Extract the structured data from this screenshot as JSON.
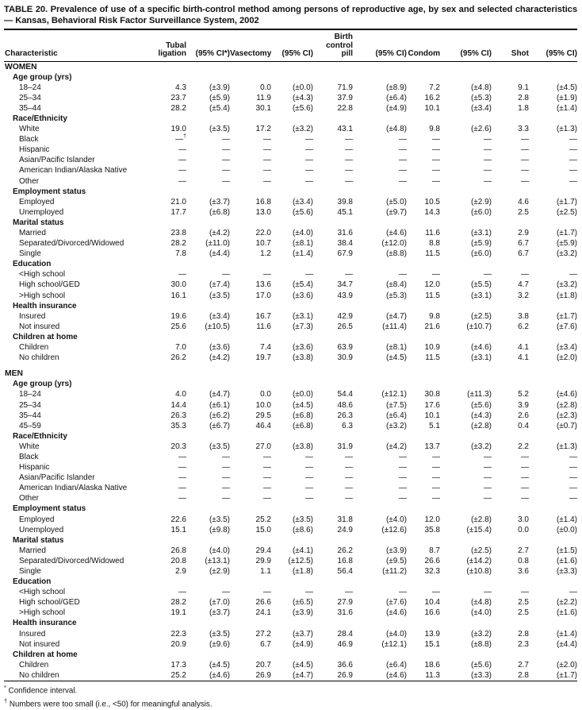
{
  "title": "TABLE 20. Prevalence of use of a specific birth-control method among persons of reproductive age, by sex and selected characteristics — Kansas, Behavioral Risk Factor Surveillance System, 2002",
  "columns": {
    "characteristic": "Characteristic",
    "headers": [
      "Tubal\nligation",
      "(95% CI*)",
      "Vasectomy",
      "(95% CI)",
      "Birth\ncontrol\npill",
      "(95% CI)",
      "Condom",
      "(95% CI)",
      "Shot",
      "(95% CI)"
    ]
  },
  "sections": [
    {
      "name": "WOMEN",
      "groups": [
        {
          "label": "Age group (yrs)",
          "rows": [
            {
              "label": "18–24",
              "values": [
                "4.3",
                "(±3.9)",
                "0.0",
                "(±0.0)",
                "71.9",
                "(±8.9)",
                "7.2",
                "(±4.8)",
                "9.1",
                "(±4.5)"
              ]
            },
            {
              "label": "25–34",
              "values": [
                "23.7",
                "(±5.9)",
                "11.9",
                "(±4.3)",
                "37.9",
                "(±6.4)",
                "16.2",
                "(±5.3)",
                "2.8",
                "(±1.9)"
              ]
            },
            {
              "label": "35–44",
              "values": [
                "28.2",
                "(±5.4)",
                "30.1",
                "(±5.6)",
                "22.8",
                "(±4.9)",
                "10.1",
                "(±3.4)",
                "1.8",
                "(±1.4)"
              ]
            }
          ]
        },
        {
          "label": "Race/Ethnicity",
          "rows": [
            {
              "label": "White",
              "values": [
                "19.0",
                "(±3.5)",
                "17.2",
                "(±3.2)",
                "43.1",
                "(±4.8)",
                "9.8",
                "(±2.6)",
                "3.3",
                "(±1.3)"
              ]
            },
            {
              "label": "Black",
              "values": [
                "—†",
                "—",
                "—",
                "—",
                "—",
                "—",
                "—",
                "—",
                "—",
                "—"
              ]
            },
            {
              "label": "Hispanic",
              "values": [
                "—",
                "—",
                "—",
                "—",
                "—",
                "—",
                "—",
                "—",
                "—",
                "—"
              ]
            },
            {
              "label": "Asian/Pacific Islander",
              "values": [
                "—",
                "—",
                "—",
                "—",
                "—",
                "—",
                "—",
                "—",
                "—",
                "—"
              ]
            },
            {
              "label": "American Indian/Alaska Native",
              "values": [
                "—",
                "—",
                "—",
                "—",
                "—",
                "—",
                "—",
                "—",
                "—",
                "—"
              ]
            },
            {
              "label": "Other",
              "values": [
                "—",
                "—",
                "—",
                "—",
                "—",
                "—",
                "—",
                "—",
                "—",
                "—"
              ]
            }
          ]
        },
        {
          "label": "Employment status",
          "rows": [
            {
              "label": "Employed",
              "values": [
                "21.0",
                "(±3.7)",
                "16.8",
                "(±3.4)",
                "39.8",
                "(±5.0)",
                "10.5",
                "(±2.9)",
                "4.6",
                "(±1.7)"
              ]
            },
            {
              "label": "Unemployed",
              "values": [
                "17.7",
                "(±6.8)",
                "13.0",
                "(±5.6)",
                "45.1",
                "(±9.7)",
                "14.3",
                "(±6.0)",
                "2.5",
                "(±2.5)"
              ]
            }
          ]
        },
        {
          "label": "Marital status",
          "rows": [
            {
              "label": "Married",
              "values": [
                "23.8",
                "(±4.2)",
                "22.0",
                "(±4.0)",
                "31.6",
                "(±4.6)",
                "11.6",
                "(±3.1)",
                "2.9",
                "(±1.7)"
              ]
            },
            {
              "label": "Separated/Divorced/Widowed",
              "values": [
                "28.2",
                "(±11.0)",
                "10.7",
                "(±8.1)",
                "38.4",
                "(±12.0)",
                "8.8",
                "(±5.9)",
                "6.7",
                "(±5.9)"
              ]
            },
            {
              "label": "Single",
              "values": [
                "7.8",
                "(±4.4)",
                "1.2",
                "(±1.4)",
                "67.9",
                "(±8.8)",
                "11.5",
                "(±6.0)",
                "6.7",
                "(±3.2)"
              ]
            }
          ]
        },
        {
          "label": "Education",
          "rows": [
            {
              "label": "<High school",
              "values": [
                "—",
                "—",
                "—",
                "—",
                "—",
                "—",
                "—",
                "—",
                "—",
                "—"
              ]
            },
            {
              "label": "High school/GED",
              "values": [
                "30.0",
                "(±7.4)",
                "13.6",
                "(±5.4)",
                "34.7",
                "(±8.4)",
                "12.0",
                "(±5.5)",
                "4.7",
                "(±3.2)"
              ]
            },
            {
              "label": ">High school",
              "values": [
                "16.1",
                "(±3.5)",
                "17.0",
                "(±3.6)",
                "43.9",
                "(±5.3)",
                "11.5",
                "(±3.1)",
                "3.2",
                "(±1.8)"
              ]
            }
          ]
        },
        {
          "label": "Health insurance",
          "rows": [
            {
              "label": "Insured",
              "values": [
                "19.6",
                "(±3.4)",
                "16.7",
                "(±3.1)",
                "42.9",
                "(±4.7)",
                "9.8",
                "(±2.5)",
                "3.8",
                "(±1.7)"
              ]
            },
            {
              "label": "Not insured",
              "values": [
                "25.6",
                "(±10.5)",
                "11.6",
                "(±7.3)",
                "26.5",
                "(±11.4)",
                "21.6",
                "(±10.7)",
                "6.2",
                "(±7.6)"
              ]
            }
          ]
        },
        {
          "label": "Children at home",
          "rows": [
            {
              "label": "Children",
              "values": [
                "7.0",
                "(±3.6)",
                "7.4",
                "(±3.6)",
                "63.9",
                "(±8.1)",
                "10.9",
                "(±4.6)",
                "4.1",
                "(±3.4)"
              ]
            },
            {
              "label": "No children",
              "values": [
                "26.2",
                "(±4.2)",
                "19.7",
                "(±3.8)",
                "30.9",
                "(±4.5)",
                "11.5",
                "(±3.1)",
                "4.1",
                "(±2.0)"
              ]
            }
          ]
        }
      ]
    },
    {
      "name": "MEN",
      "groups": [
        {
          "label": "Age group (yrs)",
          "rows": [
            {
              "label": "18–24",
              "values": [
                "4.0",
                "(±4.7)",
                "0.0",
                "(±0.0)",
                "54.4",
                "(±12.1)",
                "30.8",
                "(±11.3)",
                "5.2",
                "(±4.6)"
              ]
            },
            {
              "label": "25–34",
              "values": [
                "14.4",
                "(±6.1)",
                "10.0",
                "(±4.5)",
                "48.6",
                "(±7.5)",
                "17.6",
                "(±5.6)",
                "3.9",
                "(±2.8)"
              ]
            },
            {
              "label": "35–44",
              "values": [
                "26.3",
                "(±6.2)",
                "29.5",
                "(±6.8)",
                "26.3",
                "(±6.4)",
                "10.1",
                "(±4.3)",
                "2.6",
                "(±2.3)"
              ]
            },
            {
              "label": "45–59",
              "values": [
                "35.3",
                "(±6.7)",
                "46.4",
                "(±6.8)",
                "6.3",
                "(±3.2)",
                "5.1",
                "(±2.8)",
                "0.4",
                "(±0.7)"
              ]
            }
          ]
        },
        {
          "label": "Race/Ethnicity",
          "rows": [
            {
              "label": "White",
              "values": [
                "20.3",
                "(±3.5)",
                "27.0",
                "(±3.8)",
                "31.9",
                "(±4.2)",
                "13.7",
                "(±3.2)",
                "2.2",
                "(±1.3)"
              ]
            },
            {
              "label": "Black",
              "values": [
                "—",
                "—",
                "—",
                "—",
                "—",
                "—",
                "—",
                "—",
                "—",
                "—"
              ]
            },
            {
              "label": "Hispanic",
              "values": [
                "—",
                "—",
                "—",
                "—",
                "—",
                "—",
                "—",
                "—",
                "—",
                "—"
              ]
            },
            {
              "label": "Asian/Pacific Islander",
              "values": [
                "—",
                "—",
                "—",
                "—",
                "—",
                "—",
                "—",
                "—",
                "—",
                "—"
              ]
            },
            {
              "label": "American Indian/Alaska Native",
              "values": [
                "—",
                "—",
                "—",
                "—",
                "—",
                "—",
                "—",
                "—",
                "—",
                "—"
              ]
            },
            {
              "label": "Other",
              "values": [
                "—",
                "—",
                "—",
                "—",
                "—",
                "—",
                "—",
                "—",
                "—",
                "—"
              ]
            }
          ]
        },
        {
          "label": "Employment status",
          "rows": [
            {
              "label": "Employed",
              "values": [
                "22.6",
                "(±3.5)",
                "25.2",
                "(±3.5)",
                "31.8",
                "(±4.0)",
                "12.0",
                "(±2.8)",
                "3.0",
                "(±1.4)"
              ]
            },
            {
              "label": "Unemployed",
              "values": [
                "15.1",
                "(±9.8)",
                "15.0",
                "(±8.6)",
                "24.9",
                "(±12.6)",
                "35.8",
                "(±15.4)",
                "0.0",
                "(±0.0)"
              ]
            }
          ]
        },
        {
          "label": "Marital status",
          "rows": [
            {
              "label": "Married",
              "values": [
                "26.8",
                "(±4.0)",
                "29.4",
                "(±4.1)",
                "26.2",
                "(±3.9)",
                "8.7",
                "(±2.5)",
                "2.7",
                "(±1.5)"
              ]
            },
            {
              "label": "Separated/Divorced/Widowed",
              "values": [
                "20.8",
                "(±13.1)",
                "29.9",
                "(±12.5)",
                "16.8",
                "(±9.5)",
                "26.6",
                "(±14.2)",
                "0.8",
                "(±1.6)"
              ]
            },
            {
              "label": "Single",
              "values": [
                "2.9",
                "(±2.9)",
                "1.1",
                "(±1.8)",
                "56.4",
                "(±11.2)",
                "32.3",
                "(±10.8)",
                "3.6",
                "(±3.3)"
              ]
            }
          ]
        },
        {
          "label": "Education",
          "rows": [
            {
              "label": "<High school",
              "values": [
                "—",
                "—",
                "—",
                "—",
                "—",
                "—",
                "—",
                "—",
                "—",
                "—"
              ]
            },
            {
              "label": "High school/GED",
              "values": [
                "28.2",
                "(±7.0)",
                "26.6",
                "(±6.5)",
                "27.9",
                "(±7.6)",
                "10.4",
                "(±4.8)",
                "2.5",
                "(±2.2)"
              ]
            },
            {
              "label": ">High school",
              "values": [
                "19.1",
                "(±3.7)",
                "24.1",
                "(±3.9)",
                "31.6",
                "(±4.6)",
                "16.6",
                "(±4.0)",
                "2.5",
                "(±1.6)"
              ]
            }
          ]
        },
        {
          "label": "Health insurance",
          "rows": [
            {
              "label": "Insured",
              "values": [
                "22.3",
                "(±3.5)",
                "27.2",
                "(±3.7)",
                "28.4",
                "(±4.0)",
                "13.9",
                "(±3.2)",
                "2.8",
                "(±1.4)"
              ]
            },
            {
              "label": "Not insured",
              "values": [
                "20.9",
                "(±9.6)",
                "6.7",
                "(±4.9)",
                "46.9",
                "(±12.1)",
                "15.1",
                "(±8.8)",
                "2.3",
                "(±4.4)"
              ]
            }
          ]
        },
        {
          "label": "Children at home",
          "rows": [
            {
              "label": "Children",
              "values": [
                "17.3",
                "(±4.5)",
                "20.7",
                "(±4.5)",
                "36.6",
                "(±6.4)",
                "18.6",
                "(±5.6)",
                "2.7",
                "(±2.0)"
              ]
            },
            {
              "label": "No children",
              "values": [
                "25.2",
                "(±4.6)",
                "26.9",
                "(±4.7)",
                "26.9",
                "(±4.6)",
                "11.3",
                "(±3.3)",
                "2.8",
                "(±1.7)"
              ]
            }
          ]
        }
      ]
    }
  ],
  "footnotes": [
    {
      "marker": "*",
      "text": "Confidence interval."
    },
    {
      "marker": "†",
      "text": "Numbers were too small (i.e., <50) for meaningful analysis."
    }
  ]
}
